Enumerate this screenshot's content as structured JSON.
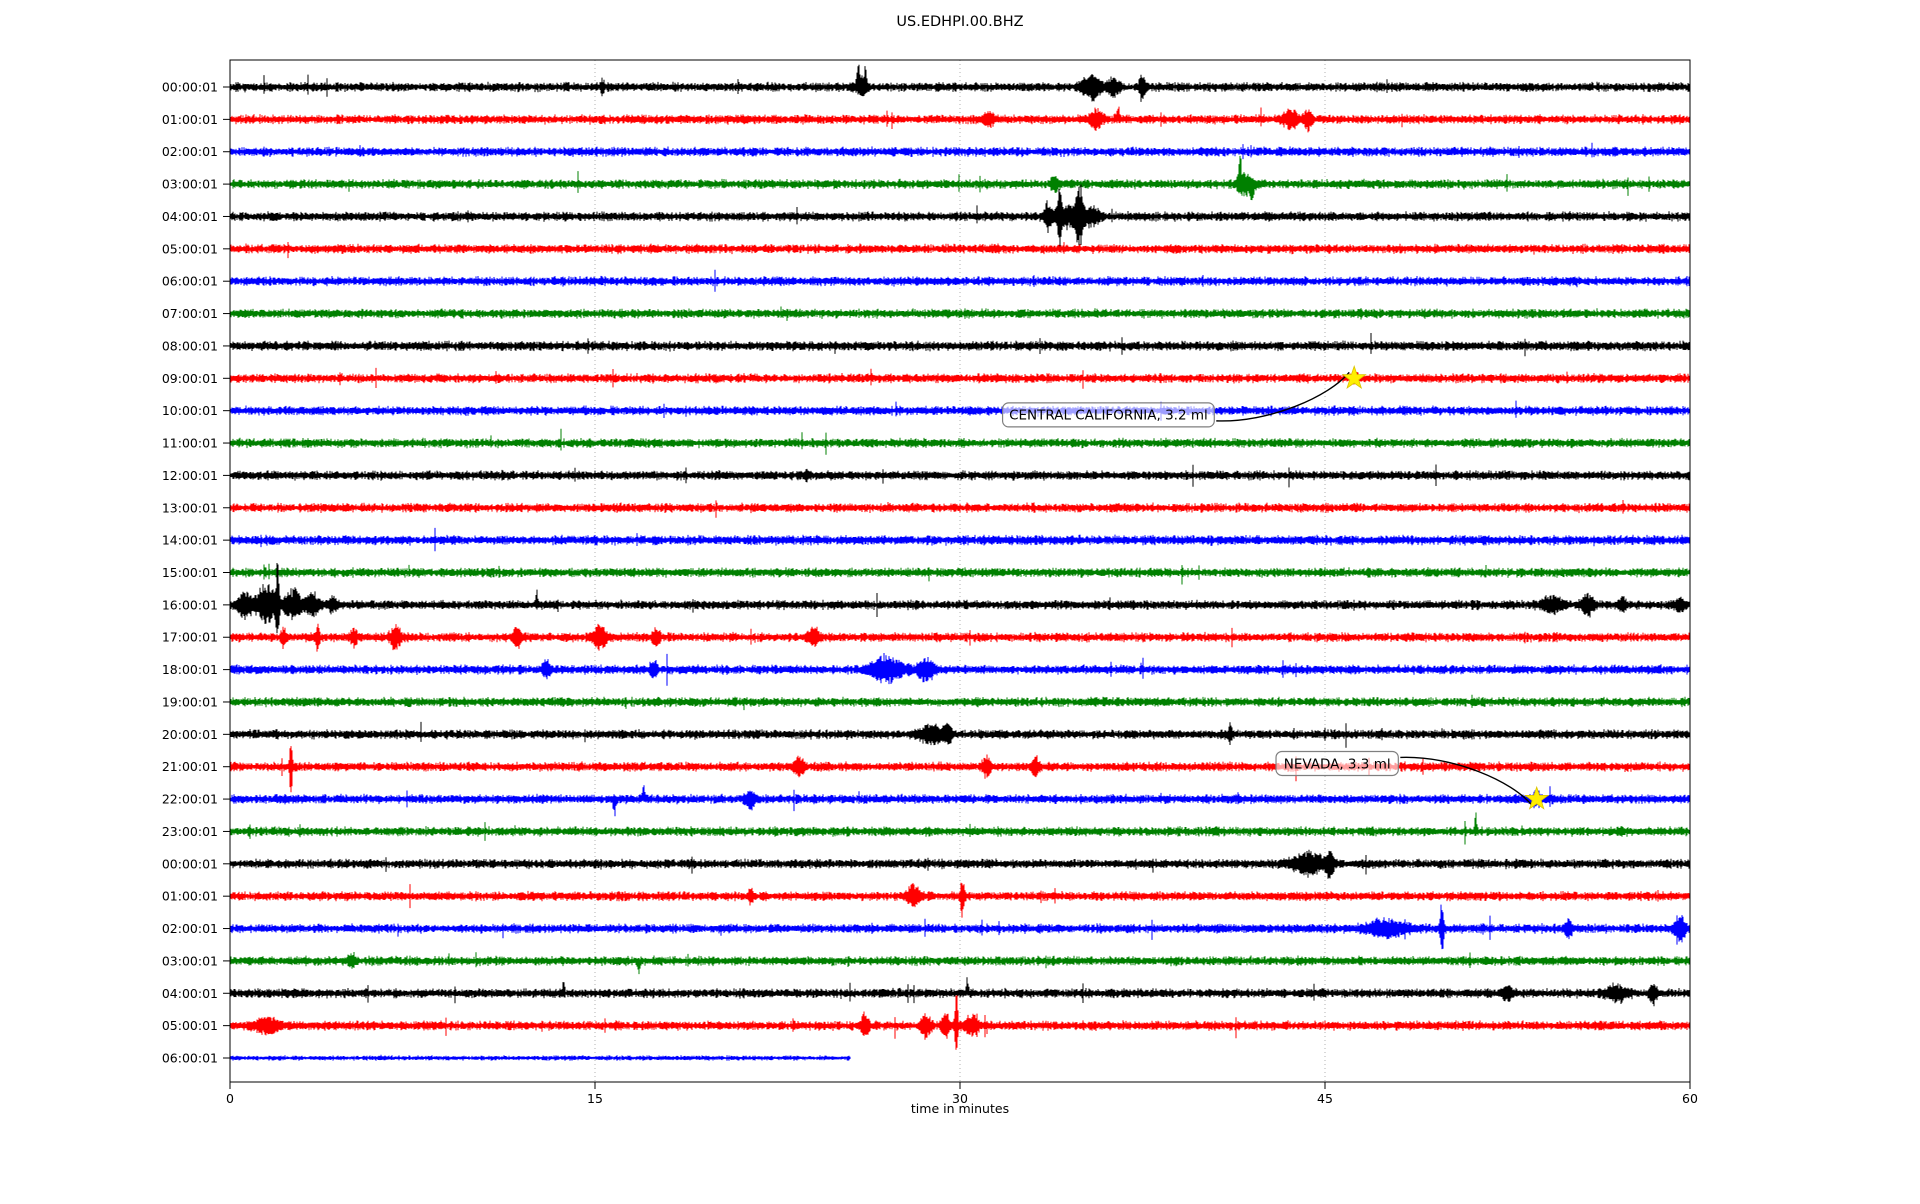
{
  "title": "US.EDHPI.00.BHZ",
  "xlabel": "time in minutes",
  "chart_data": {
    "type": "line",
    "subtype": "seismogram-helicorder",
    "station_code": "US.EDHPI.00.BHZ",
    "x_range_minutes": [
      0,
      60
    ],
    "x_ticks": [
      "0",
      "15",
      "30",
      "45",
      "60"
    ],
    "x_tick_values": [
      0,
      15,
      30,
      45,
      60
    ],
    "gridlines_minutes": [
      15,
      30,
      45
    ],
    "grid_on": true,
    "minutes_per_row": 60,
    "trace_color_cycle": [
      "#000000",
      "#ff0000",
      "#0000ff",
      "#008000"
    ],
    "star_color": "#ffee00",
    "traces": [
      {
        "label": "00:00:01",
        "color": "#000000",
        "base_amp": 4.3,
        "end_minute": 60,
        "events": [
          {
            "m": 25.82,
            "w": 0.1,
            "a": 32,
            "dir": "up"
          },
          {
            "m": 26.12,
            "w": 0.08,
            "a": 22,
            "dir": "up"
          },
          {
            "m": 25.95,
            "w": 0.45,
            "a": 8,
            "dir": "both"
          },
          {
            "m": 35.4,
            "w": 0.7,
            "a": 11,
            "dir": "both"
          },
          {
            "m": 36.3,
            "w": 0.4,
            "a": 9,
            "dir": "both"
          },
          {
            "m": 37.5,
            "w": 0.25,
            "a": 12,
            "dir": "both"
          },
          {
            "m": 15.3,
            "w": 0.15,
            "a": 6,
            "dir": "both"
          }
        ]
      },
      {
        "label": "01:00:01",
        "color": "#ff0000",
        "base_amp": 4.3,
        "end_minute": 60,
        "events": [
          {
            "m": 31.2,
            "w": 0.4,
            "a": 6,
            "dir": "both"
          },
          {
            "m": 35.6,
            "w": 0.5,
            "a": 9,
            "dir": "both"
          },
          {
            "m": 36.5,
            "w": 0.15,
            "a": 14,
            "dir": "up"
          },
          {
            "m": 43.6,
            "w": 0.6,
            "a": 8,
            "dir": "both"
          },
          {
            "m": 44.3,
            "w": 0.25,
            "a": 10,
            "dir": "both"
          }
        ]
      },
      {
        "label": "02:00:01",
        "color": "#0000ff",
        "base_amp": 4.3,
        "end_minute": 60,
        "events": []
      },
      {
        "label": "03:00:01",
        "color": "#008000",
        "base_amp": 4.3,
        "end_minute": 60,
        "events": [
          {
            "m": 41.5,
            "w": 0.12,
            "a": 30,
            "dir": "up"
          },
          {
            "m": 41.7,
            "w": 0.6,
            "a": 10,
            "dir": "both"
          },
          {
            "m": 42.0,
            "w": 0.15,
            "a": 15,
            "dir": "down"
          },
          {
            "m": 33.9,
            "w": 0.3,
            "a": 6,
            "dir": "both"
          }
        ]
      },
      {
        "label": "04:00:01",
        "color": "#000000",
        "base_amp": 4.3,
        "end_minute": 60,
        "events": [
          {
            "m": 33.6,
            "w": 0.3,
            "a": 12,
            "dir": "both"
          },
          {
            "m": 34.1,
            "w": 0.15,
            "a": 26,
            "dir": "both"
          },
          {
            "m": 34.4,
            "w": 1.0,
            "a": 10,
            "dir": "both"
          },
          {
            "m": 34.9,
            "w": 0.25,
            "a": 30,
            "dir": "both"
          },
          {
            "m": 35.4,
            "w": 0.6,
            "a": 8,
            "dir": "both"
          }
        ]
      },
      {
        "label": "05:00:01",
        "color": "#ff0000",
        "base_amp": 4.3,
        "end_minute": 60,
        "events": []
      },
      {
        "label": "06:00:01",
        "color": "#0000ff",
        "base_amp": 4.3,
        "end_minute": 60,
        "events": []
      },
      {
        "label": "07:00:01",
        "color": "#008000",
        "base_amp": 4.3,
        "end_minute": 60,
        "events": []
      },
      {
        "label": "08:00:01",
        "color": "#000000",
        "base_amp": 4.5,
        "end_minute": 60,
        "events": []
      },
      {
        "label": "09:00:01",
        "color": "#ff0000",
        "base_amp": 4.3,
        "end_minute": 60,
        "events": [
          {
            "m": 46.2,
            "w": 0.25,
            "a": 4,
            "dir": "both"
          }
        ]
      },
      {
        "label": "10:00:01",
        "color": "#0000ff",
        "base_amp": 4.3,
        "end_minute": 60,
        "events": []
      },
      {
        "label": "11:00:01",
        "color": "#008000",
        "base_amp": 4.3,
        "end_minute": 60,
        "events": []
      },
      {
        "label": "12:00:01",
        "color": "#000000",
        "base_amp": 4.3,
        "end_minute": 60,
        "events": []
      },
      {
        "label": "13:00:01",
        "color": "#ff0000",
        "base_amp": 4.3,
        "end_minute": 60,
        "events": []
      },
      {
        "label": "14:00:01",
        "color": "#0000ff",
        "base_amp": 4.5,
        "end_minute": 60,
        "events": []
      },
      {
        "label": "15:00:01",
        "color": "#008000",
        "base_amp": 4.3,
        "end_minute": 60,
        "events": []
      },
      {
        "label": "16:00:01",
        "color": "#000000",
        "base_amp": 4.3,
        "end_minute": 60,
        "events": [
          {
            "m": 0.6,
            "w": 0.5,
            "a": 12,
            "dir": "both"
          },
          {
            "m": 1.5,
            "w": 0.8,
            "a": 18,
            "dir": "both"
          },
          {
            "m": 1.95,
            "w": 0.12,
            "a": 34,
            "dir": "both"
          },
          {
            "m": 2.6,
            "w": 0.6,
            "a": 14,
            "dir": "both"
          },
          {
            "m": 3.4,
            "w": 0.5,
            "a": 10,
            "dir": "both"
          },
          {
            "m": 4.2,
            "w": 0.3,
            "a": 7,
            "dir": "both"
          },
          {
            "m": 12.6,
            "w": 0.1,
            "a": 12,
            "dir": "up"
          },
          {
            "m": 54.3,
            "w": 0.8,
            "a": 8,
            "dir": "both"
          },
          {
            "m": 55.8,
            "w": 0.5,
            "a": 9,
            "dir": "both"
          },
          {
            "m": 57.2,
            "w": 0.3,
            "a": 6,
            "dir": "both"
          },
          {
            "m": 59.6,
            "w": 0.3,
            "a": 7,
            "dir": "both"
          }
        ]
      },
      {
        "label": "17:00:01",
        "color": "#ff0000",
        "base_amp": 4.3,
        "end_minute": 60,
        "events": [
          {
            "m": 2.2,
            "w": 0.2,
            "a": 9,
            "dir": "both"
          },
          {
            "m": 3.6,
            "w": 0.15,
            "a": 14,
            "dir": "both"
          },
          {
            "m": 5.1,
            "w": 0.25,
            "a": 8,
            "dir": "both"
          },
          {
            "m": 6.8,
            "w": 0.4,
            "a": 11,
            "dir": "both"
          },
          {
            "m": 11.8,
            "w": 0.3,
            "a": 9,
            "dir": "both"
          },
          {
            "m": 15.2,
            "w": 0.5,
            "a": 11,
            "dir": "both"
          },
          {
            "m": 17.5,
            "w": 0.3,
            "a": 8,
            "dir": "both"
          },
          {
            "m": 24.0,
            "w": 0.4,
            "a": 9,
            "dir": "both"
          }
        ]
      },
      {
        "label": "18:00:01",
        "color": "#0000ff",
        "base_amp": 4.3,
        "end_minute": 60,
        "events": [
          {
            "m": 13.0,
            "w": 0.3,
            "a": 7,
            "dir": "both"
          },
          {
            "m": 17.4,
            "w": 0.25,
            "a": 9,
            "dir": "both"
          },
          {
            "m": 27.0,
            "w": 1.2,
            "a": 12,
            "dir": "both"
          },
          {
            "m": 28.6,
            "w": 0.6,
            "a": 10,
            "dir": "both"
          }
        ]
      },
      {
        "label": "19:00:01",
        "color": "#008000",
        "base_amp": 4.3,
        "end_minute": 60,
        "events": []
      },
      {
        "label": "20:00:01",
        "color": "#000000",
        "base_amp": 4.3,
        "end_minute": 60,
        "events": [
          {
            "m": 28.8,
            "w": 0.9,
            "a": 8,
            "dir": "both"
          },
          {
            "m": 29.5,
            "w": 0.3,
            "a": 10,
            "dir": "both"
          },
          {
            "m": 41.1,
            "w": 0.15,
            "a": 9,
            "dir": "both"
          }
        ]
      },
      {
        "label": "21:00:01",
        "color": "#ff0000",
        "base_amp": 4.3,
        "end_minute": 60,
        "events": [
          {
            "m": 2.5,
            "w": 0.12,
            "a": 28,
            "dir": "both"
          },
          {
            "m": 23.4,
            "w": 0.4,
            "a": 8,
            "dir": "both"
          },
          {
            "m": 31.1,
            "w": 0.3,
            "a": 9,
            "dir": "both"
          },
          {
            "m": 33.1,
            "w": 0.3,
            "a": 8,
            "dir": "both"
          }
        ]
      },
      {
        "label": "22:00:01",
        "color": "#0000ff",
        "base_amp": 4.3,
        "end_minute": 60,
        "events": [
          {
            "m": 15.8,
            "w": 0.15,
            "a": 13,
            "dir": "down"
          },
          {
            "m": 17.0,
            "w": 0.12,
            "a": 12,
            "dir": "up"
          },
          {
            "m": 21.4,
            "w": 0.4,
            "a": 8,
            "dir": "both"
          },
          {
            "m": 53.7,
            "w": 0.3,
            "a": 6,
            "dir": "both"
          }
        ]
      },
      {
        "label": "23:00:01",
        "color": "#008000",
        "base_amp": 4.3,
        "end_minute": 60,
        "events": [
          {
            "m": 51.2,
            "w": 0.1,
            "a": 18,
            "dir": "up"
          }
        ]
      },
      {
        "label": "00:00:01",
        "color": "#000000",
        "base_amp": 4.3,
        "end_minute": 60,
        "events": [
          {
            "m": 44.3,
            "w": 1.2,
            "a": 10,
            "dir": "both"
          },
          {
            "m": 45.2,
            "w": 0.3,
            "a": 12,
            "dir": "both"
          }
        ]
      },
      {
        "label": "01:00:01",
        "color": "#ff0000",
        "base_amp": 4.3,
        "end_minute": 60,
        "events": [
          {
            "m": 28.1,
            "w": 0.5,
            "a": 10,
            "dir": "both"
          },
          {
            "m": 30.1,
            "w": 0.15,
            "a": 17,
            "dir": "both"
          },
          {
            "m": 21.4,
            "w": 0.2,
            "a": 6,
            "dir": "both"
          }
        ]
      },
      {
        "label": "02:00:01",
        "color": "#0000ff",
        "base_amp": 4.3,
        "end_minute": 60,
        "events": [
          {
            "m": 47.5,
            "w": 1.5,
            "a": 8,
            "dir": "both"
          },
          {
            "m": 49.8,
            "w": 0.15,
            "a": 24,
            "dir": "both"
          },
          {
            "m": 55.0,
            "w": 0.3,
            "a": 7,
            "dir": "both"
          },
          {
            "m": 59.6,
            "w": 0.4,
            "a": 11,
            "dir": "both"
          }
        ]
      },
      {
        "label": "03:00:01",
        "color": "#008000",
        "base_amp": 4.3,
        "end_minute": 60,
        "events": [
          {
            "m": 16.8,
            "w": 0.12,
            "a": 15,
            "dir": "down"
          },
          {
            "m": 5.0,
            "w": 0.3,
            "a": 6,
            "dir": "both"
          }
        ]
      },
      {
        "label": "04:00:01",
        "color": "#000000",
        "base_amp": 4.3,
        "end_minute": 60,
        "events": [
          {
            "m": 13.7,
            "w": 0.1,
            "a": 12,
            "dir": "up"
          },
          {
            "m": 30.3,
            "w": 0.1,
            "a": 16,
            "dir": "up"
          },
          {
            "m": 52.5,
            "w": 0.4,
            "a": 7,
            "dir": "both"
          },
          {
            "m": 57.0,
            "w": 0.8,
            "a": 7,
            "dir": "both"
          },
          {
            "m": 58.5,
            "w": 0.3,
            "a": 8,
            "dir": "both"
          }
        ]
      },
      {
        "label": "05:00:01",
        "color": "#ff0000",
        "base_amp": 4.3,
        "end_minute": 60,
        "events": [
          {
            "m": 1.5,
            "w": 1.0,
            "a": 7,
            "dir": "both"
          },
          {
            "m": 26.1,
            "w": 0.3,
            "a": 10,
            "dir": "both"
          },
          {
            "m": 28.6,
            "w": 0.4,
            "a": 10,
            "dir": "both"
          },
          {
            "m": 29.4,
            "w": 0.3,
            "a": 11,
            "dir": "both"
          },
          {
            "m": 29.85,
            "w": 0.12,
            "a": 34,
            "dir": "both"
          },
          {
            "m": 30.5,
            "w": 0.5,
            "a": 9,
            "dir": "both"
          }
        ]
      },
      {
        "label": "06:00:01",
        "color": "#0000ff",
        "base_amp": 2.3,
        "end_minute": 25.5,
        "events": []
      }
    ],
    "annotations": [
      {
        "text": "CENTRAL CALIFORNIA, 3.2 ml",
        "region": "CENTRAL CALIFORNIA",
        "magnitude": "3.2 ml",
        "trace_index": 9,
        "event_minute": 46.2,
        "label_minute": 36.1,
        "label_row": 10.13
      },
      {
        "text": "NEVADA, 3.3 ml",
        "region": "NEVADA",
        "magnitude": "3.3 ml",
        "trace_index": 22,
        "event_minute": 53.7,
        "label_minute": 45.5,
        "label_row": 20.9
      }
    ]
  }
}
